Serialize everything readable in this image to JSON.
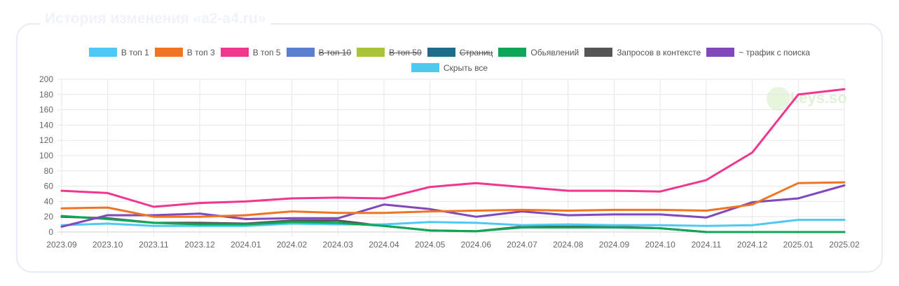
{
  "header": {
    "title": "История изменения «a2-a4.ru»"
  },
  "watermark": {
    "text": "keys.so"
  },
  "legend": [
    {
      "label": "В топ 1",
      "color": "#4fc8f3",
      "hidden": false
    },
    {
      "label": "В топ 3",
      "color": "#f07424",
      "hidden": false
    },
    {
      "label": "В топ 5",
      "color": "#f0368e",
      "hidden": false
    },
    {
      "label": "В топ 10",
      "color": "#5b7fcf",
      "hidden": true
    },
    {
      "label": "В топ 50",
      "color": "#a9c43a",
      "hidden": true
    },
    {
      "label": "Страниц",
      "color": "#1e6b8c",
      "hidden": true
    },
    {
      "label": "Обьявлений",
      "color": "#10a657",
      "hidden": false
    },
    {
      "label": "Запросов в контексте",
      "color": "#555555",
      "hidden": false
    },
    {
      "label": "~ трафик с поиска",
      "color": "#8048ba",
      "hidden": false
    },
    {
      "label": "Скрыть все",
      "color": "#4fc8f3",
      "hidden": false
    }
  ],
  "chart_data": {
    "type": "line",
    "title": "История изменения «a2-a4.ru»",
    "xlabel": "",
    "ylabel": "",
    "ylim": [
      0,
      200
    ],
    "yticks": [
      0,
      20,
      40,
      60,
      80,
      100,
      120,
      140,
      160,
      180,
      200
    ],
    "grid": true,
    "legend_position": "top",
    "categories": [
      "2023.09",
      "2023.10",
      "2023.11",
      "2023.12",
      "2024.01",
      "2024.02",
      "2024.03",
      "2024.04",
      "2024.05",
      "2024.06",
      "2024.07",
      "2024.08",
      "2024.09",
      "2024.10",
      "2024.11",
      "2024.12",
      "2025.01",
      "2025.02"
    ],
    "series": [
      {
        "name": "Запросов в контексте",
        "color": "#555555",
        "values": [
          20,
          18,
          12,
          12,
          11,
          15,
          15,
          8,
          2,
          1,
          7,
          7,
          7,
          5,
          0,
          0,
          0,
          0
        ]
      },
      {
        "name": "В топ 1",
        "color": "#4fc8f3",
        "values": [
          9,
          11,
          8,
          8,
          8,
          11,
          10,
          10,
          13,
          12,
          9,
          10,
          9,
          9,
          8,
          9,
          16,
          16
        ]
      },
      {
        "name": "Обьявлений",
        "color": "#10a657",
        "values": [
          21,
          17,
          12,
          10,
          10,
          13,
          12,
          8,
          2,
          1,
          6,
          6,
          6,
          5,
          0,
          0,
          0,
          0
        ]
      },
      {
        "name": "~ трафик с поиска",
        "color": "#8048ba",
        "values": [
          7,
          22,
          22,
          24,
          17,
          18,
          18,
          36,
          30,
          20,
          27,
          22,
          23,
          23,
          19,
          39,
          44,
          61
        ]
      },
      {
        "name": "В топ 3",
        "color": "#f07424",
        "values": [
          31,
          32,
          20,
          20,
          22,
          27,
          25,
          25,
          27,
          28,
          29,
          28,
          29,
          29,
          28,
          36,
          64,
          65
        ]
      },
      {
        "name": "В топ 5",
        "color": "#f0368e",
        "values": [
          54,
          51,
          33,
          38,
          40,
          44,
          45,
          44,
          59,
          64,
          59,
          54,
          54,
          53,
          68,
          104,
          180,
          187
        ]
      }
    ]
  }
}
